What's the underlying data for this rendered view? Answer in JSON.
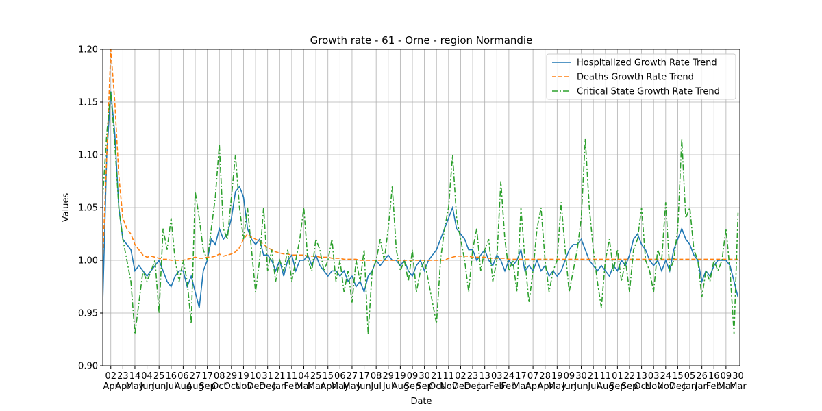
{
  "chart_data": {
    "type": "line",
    "title": "Growth rate - 61 - Orne - region Normandie",
    "xlabel": "Date",
    "ylabel": "Values",
    "grid": true,
    "legend": "upper right",
    "xlim": [
      "2020-03-19",
      "2023-04-02"
    ],
    "ylim": [
      0.9,
      1.2
    ],
    "yticks": [
      {
        "value": 0.9,
        "label": "0.90"
      },
      {
        "value": 0.95,
        "label": "0.95"
      },
      {
        "value": 1.0,
        "label": "1.00"
      },
      {
        "value": 1.05,
        "label": "1.05"
      },
      {
        "value": 1.1,
        "label": "1.10"
      },
      {
        "value": 1.15,
        "label": "1.15"
      },
      {
        "value": 1.2,
        "label": "1.20"
      }
    ],
    "xticks": [
      {
        "value": "2020-04-02",
        "label": "02\nApr"
      },
      {
        "value": "2020-04-23",
        "label": "23\nApr"
      },
      {
        "value": "2020-05-14",
        "label": "14\nMay"
      },
      {
        "value": "2020-06-04",
        "label": "04\nJun"
      },
      {
        "value": "2020-06-25",
        "label": "25\nJun"
      },
      {
        "value": "2020-07-16",
        "label": "16\nJul"
      },
      {
        "value": "2020-08-06",
        "label": "06\nAug"
      },
      {
        "value": "2020-08-27",
        "label": "27\nAug"
      },
      {
        "value": "2020-09-17",
        "label": "17\nSep"
      },
      {
        "value": "2020-10-08",
        "label": "08\nOct"
      },
      {
        "value": "2020-10-29",
        "label": "29\nOct"
      },
      {
        "value": "2020-11-19",
        "label": "19\nNov"
      },
      {
        "value": "2020-12-10",
        "label": "10\nDec"
      },
      {
        "value": "2020-12-31",
        "label": "31\nDec"
      },
      {
        "value": "2021-01-21",
        "label": "21\nJan"
      },
      {
        "value": "2021-02-11",
        "label": "11\nFeb"
      },
      {
        "value": "2021-03-04",
        "label": "04\nMar"
      },
      {
        "value": "2021-03-25",
        "label": "25\nMar"
      },
      {
        "value": "2021-04-15",
        "label": "15\nApr"
      },
      {
        "value": "2021-05-06",
        "label": "06\nMay"
      },
      {
        "value": "2021-05-27",
        "label": "27\nMay"
      },
      {
        "value": "2021-06-17",
        "label": "17\nJun"
      },
      {
        "value": "2021-07-08",
        "label": "08\nJul"
      },
      {
        "value": "2021-07-29",
        "label": "29\nJul"
      },
      {
        "value": "2021-08-19",
        "label": "19\nAug"
      },
      {
        "value": "2021-09-09",
        "label": "09\nSep"
      },
      {
        "value": "2021-09-30",
        "label": "30\nSep"
      },
      {
        "value": "2021-10-21",
        "label": "21\nOct"
      },
      {
        "value": "2021-11-11",
        "label": "11\nNov"
      },
      {
        "value": "2021-12-02",
        "label": "02\nDec"
      },
      {
        "value": "2021-12-23",
        "label": "23\nDec"
      },
      {
        "value": "2022-01-13",
        "label": "13\nJan"
      },
      {
        "value": "2022-02-03",
        "label": "03\nFeb"
      },
      {
        "value": "2022-02-24",
        "label": "24\nFeb"
      },
      {
        "value": "2022-03-17",
        "label": "17\nMar"
      },
      {
        "value": "2022-04-07",
        "label": "07\nApr"
      },
      {
        "value": "2022-04-28",
        "label": "28\nApr"
      },
      {
        "value": "2022-05-19",
        "label": "19\nMay"
      },
      {
        "value": "2022-06-09",
        "label": "09\nJun"
      },
      {
        "value": "2022-06-30",
        "label": "30\nJun"
      },
      {
        "value": "2022-07-21",
        "label": "21\nJul"
      },
      {
        "value": "2022-08-11",
        "label": "11\nAug"
      },
      {
        "value": "2022-09-01",
        "label": "01\nSep"
      },
      {
        "value": "2022-09-22",
        "label": "22\nSep"
      },
      {
        "value": "2022-10-13",
        "label": "13\nOct"
      },
      {
        "value": "2022-11-03",
        "label": "03\nNov"
      },
      {
        "value": "2022-11-24",
        "label": "24\nNov"
      },
      {
        "value": "2022-12-15",
        "label": "15\nDec"
      },
      {
        "value": "2023-01-05",
        "label": "05\nJan"
      },
      {
        "value": "2023-01-26",
        "label": "26\nJan"
      },
      {
        "value": "2023-02-16",
        "label": "16\nFeb"
      },
      {
        "value": "2023-03-09",
        "label": "09\nMar"
      },
      {
        "value": "2023-03-30",
        "label": "30\nMar"
      }
    ],
    "x": [
      "2020-03-19",
      "2020-03-26",
      "2020-04-02",
      "2020-04-09",
      "2020-04-16",
      "2020-04-23",
      "2020-04-30",
      "2020-05-07",
      "2020-05-14",
      "2020-05-21",
      "2020-05-28",
      "2020-06-04",
      "2020-06-11",
      "2020-06-18",
      "2020-06-25",
      "2020-07-02",
      "2020-07-09",
      "2020-07-16",
      "2020-07-23",
      "2020-07-30",
      "2020-08-06",
      "2020-08-13",
      "2020-08-20",
      "2020-08-27",
      "2020-09-03",
      "2020-09-10",
      "2020-09-17",
      "2020-09-24",
      "2020-10-01",
      "2020-10-08",
      "2020-10-15",
      "2020-10-22",
      "2020-10-29",
      "2020-11-05",
      "2020-11-12",
      "2020-11-19",
      "2020-11-26",
      "2020-12-03",
      "2020-12-10",
      "2020-12-17",
      "2020-12-24",
      "2020-12-31",
      "2021-01-07",
      "2021-01-14",
      "2021-01-21",
      "2021-01-28",
      "2021-02-04",
      "2021-02-11",
      "2021-02-18",
      "2021-02-25",
      "2021-03-04",
      "2021-03-11",
      "2021-03-18",
      "2021-03-25",
      "2021-04-01",
      "2021-04-08",
      "2021-04-15",
      "2021-04-22",
      "2021-04-29",
      "2021-05-06",
      "2021-05-13",
      "2021-05-20",
      "2021-05-27",
      "2021-06-03",
      "2021-06-10",
      "2021-06-17",
      "2021-06-24",
      "2021-07-01",
      "2021-07-08",
      "2021-07-15",
      "2021-07-22",
      "2021-07-29",
      "2021-08-05",
      "2021-08-12",
      "2021-08-19",
      "2021-08-26",
      "2021-09-02",
      "2021-09-09",
      "2021-09-16",
      "2021-09-23",
      "2021-09-30",
      "2021-10-07",
      "2021-10-14",
      "2021-10-21",
      "2021-10-28",
      "2021-11-04",
      "2021-11-11",
      "2021-11-18",
      "2021-11-25",
      "2021-12-02",
      "2021-12-09",
      "2021-12-16",
      "2021-12-23",
      "2021-12-30",
      "2022-01-06",
      "2022-01-13",
      "2022-01-20",
      "2022-01-27",
      "2022-02-03",
      "2022-02-10",
      "2022-02-17",
      "2022-02-24",
      "2022-03-03",
      "2022-03-10",
      "2022-03-17",
      "2022-03-24",
      "2022-03-31",
      "2022-04-07",
      "2022-04-14",
      "2022-04-21",
      "2022-04-28",
      "2022-05-05",
      "2022-05-12",
      "2022-05-19",
      "2022-05-26",
      "2022-06-02",
      "2022-06-09",
      "2022-06-16",
      "2022-06-23",
      "2022-06-30",
      "2022-07-07",
      "2022-07-14",
      "2022-07-21",
      "2022-07-28",
      "2022-08-04",
      "2022-08-11",
      "2022-08-18",
      "2022-08-25",
      "2022-09-01",
      "2022-09-08",
      "2022-09-15",
      "2022-09-22",
      "2022-09-29",
      "2022-10-06",
      "2022-10-13",
      "2022-10-20",
      "2022-10-27",
      "2022-11-03",
      "2022-11-10",
      "2022-11-17",
      "2022-11-24",
      "2022-12-01",
      "2022-12-08",
      "2022-12-15",
      "2022-12-22",
      "2022-12-29",
      "2023-01-05",
      "2023-01-12",
      "2023-01-19",
      "2023-01-26",
      "2023-02-02",
      "2023-02-09",
      "2023-02-16",
      "2023-02-23",
      "2023-03-02",
      "2023-03-09",
      "2023-03-16",
      "2023-03-23",
      "2023-03-30"
    ],
    "series": [
      {
        "name": "Hospitalized Growth Rate Trend",
        "color": "#1f77b4",
        "linestyle": "solid",
        "values": [
          0.96,
          1.1,
          1.16,
          1.12,
          1.05,
          1.02,
          1.015,
          1.01,
          0.99,
          0.995,
          0.99,
          0.985,
          0.99,
          0.995,
          1.0,
          0.99,
          0.98,
          0.975,
          0.985,
          0.99,
          0.99,
          0.975,
          0.985,
          0.97,
          0.955,
          0.99,
          1.0,
          1.02,
          1.015,
          1.03,
          1.02,
          1.025,
          1.04,
          1.065,
          1.07,
          1.06,
          1.03,
          1.02,
          1.015,
          1.02,
          1.005,
          1.005,
          1.0,
          0.99,
          1.0,
          0.985,
          1.0,
          1.005,
          0.99,
          1.0,
          1.0,
          1.005,
          0.995,
          1.005,
          0.995,
          0.99,
          0.985,
          0.99,
          0.99,
          0.985,
          0.99,
          0.98,
          0.985,
          0.975,
          0.98,
          0.97,
          0.985,
          0.99,
          1.0,
          0.995,
          1.0,
          1.005,
          1.0,
          1.0,
          0.995,
          1.0,
          0.99,
          0.985,
          0.995,
          1.0,
          0.99,
          1.0,
          1.005,
          1.01,
          1.02,
          1.03,
          1.04,
          1.05,
          1.03,
          1.025,
          1.02,
          1.01,
          1.01,
          1.0,
          1.005,
          1.01,
          1.0,
          0.995,
          1.005,
          1.0,
          0.99,
          1.0,
          0.995,
          1.0,
          1.01,
          0.99,
          0.995,
          0.99,
          1.0,
          0.99,
          0.995,
          0.985,
          0.99,
          0.985,
          0.99,
          1.0,
          1.01,
          1.015,
          1.015,
          1.02,
          1.01,
          1.0,
          0.995,
          0.99,
          0.995,
          0.99,
          0.985,
          0.995,
          0.99,
          1.0,
          0.995,
          1.005,
          1.02,
          1.025,
          1.015,
          1.01,
          1.0,
          0.995,
          1.0,
          0.99,
          1.0,
          0.99,
          1.01,
          1.02,
          1.03,
          1.02,
          1.015,
          1.005,
          1.0,
          0.98,
          0.99,
          0.985,
          0.995,
          1.0,
          1.0,
          1.0,
          0.995,
          0.98,
          0.965
        ]
      },
      {
        "name": "Deaths Growth Rate Trend",
        "color": "#ff7f0e",
        "linestyle": "dashed",
        "values": [
          1.0,
          1.1,
          1.2,
          1.15,
          1.08,
          1.04,
          1.03,
          1.025,
          1.015,
          1.01,
          1.005,
          1.003,
          1.004,
          1.003,
          1.002,
          1.001,
          1.001,
          1.0,
          1.0,
          1.0,
          1.0,
          1.001,
          1.002,
          1.003,
          1.002,
          1.002,
          1.003,
          1.003,
          1.004,
          1.006,
          1.004,
          1.005,
          1.006,
          1.008,
          1.012,
          1.02,
          1.025,
          1.022,
          1.02,
          1.018,
          1.015,
          1.012,
          1.01,
          1.008,
          1.007,
          1.006,
          1.006,
          1.005,
          1.005,
          1.005,
          1.005,
          1.004,
          1.004,
          1.004,
          1.003,
          1.003,
          1.003,
          1.002,
          1.002,
          1.002,
          1.001,
          1.001,
          1.001,
          1.001,
          1.0,
          1.0,
          1.0,
          1.0,
          1.0,
          1.0,
          1.0,
          1.0,
          1.0,
          1.0,
          1.0,
          1.0,
          1.0,
          1.0,
          1.0,
          1.0,
          1.0,
          1.0,
          1.0,
          1.0,
          1.0,
          1.0,
          1.002,
          1.003,
          1.004,
          1.004,
          1.004,
          1.004,
          1.003,
          1.003,
          1.003,
          1.003,
          1.002,
          1.002,
          1.002,
          1.002,
          1.002,
          1.001,
          1.001,
          1.001,
          1.001,
          1.001,
          1.001,
          1.001,
          1.001,
          1.001,
          1.001,
          1.001,
          1.001,
          1.001,
          1.001,
          1.001,
          1.001,
          1.001,
          1.001,
          1.001,
          1.001,
          1.001,
          1.001,
          1.001,
          1.001,
          1.001,
          1.001,
          1.001,
          1.001,
          1.001,
          1.001,
          1.001,
          1.001,
          1.001,
          1.001,
          1.001,
          1.001,
          1.001,
          1.001,
          1.001,
          1.001,
          1.001,
          1.001,
          1.001,
          1.001,
          1.001,
          1.001,
          1.001,
          1.001,
          1.001,
          1.001,
          1.001,
          1.001,
          1.001,
          1.001,
          1.001,
          1.001,
          1.001,
          1.001
        ]
      },
      {
        "name": "Critical State Growth Rate Trend",
        "color": "#2ca02c",
        "linestyle": "dashdot",
        "values": [
          1.06,
          1.12,
          1.16,
          1.11,
          1.05,
          1.02,
          1.0,
          0.98,
          0.93,
          0.96,
          0.99,
          0.98,
          0.99,
          1.0,
          0.95,
          1.03,
          1.01,
          1.04,
          1.0,
          0.98,
          1.0,
          0.98,
          0.94,
          1.065,
          1.04,
          1.01,
          1.0,
          1.03,
          1.06,
          1.11,
          1.03,
          1.02,
          1.06,
          1.1,
          1.05,
          1.02,
          1.05,
          1.01,
          0.97,
          1.0,
          1.05,
          0.99,
          1.01,
          0.98,
          1.0,
          0.99,
          1.01,
          0.98,
          1.0,
          1.02,
          1.05,
          1.0,
          0.99,
          1.02,
          1.01,
          0.99,
          1.0,
          1.02,
          0.98,
          1.0,
          0.97,
          0.99,
          0.96,
          1.0,
          0.98,
          1.01,
          0.93,
          0.99,
          1.0,
          1.02,
          1.0,
          1.03,
          1.07,
          1.01,
          0.99,
          1.0,
          0.98,
          1.01,
          0.97,
          0.99,
          1.0,
          0.98,
          0.96,
          0.94,
          1.0,
          1.03,
          1.05,
          1.1,
          1.04,
          1.02,
          1.0,
          0.97,
          1.01,
          1.03,
          0.99,
          1.01,
          1.02,
          0.98,
          1.0,
          1.075,
          1.02,
          0.99,
          1.0,
          0.97,
          1.05,
          1.0,
          0.96,
          0.99,
          1.03,
          1.05,
          1.0,
          0.97,
          0.99,
          1.0,
          1.055,
          1.01,
          0.97,
          0.99,
          1.01,
          1.04,
          1.115,
          1.05,
          1.01,
          0.98,
          0.955,
          1.0,
          1.02,
          0.99,
          1.01,
          0.98,
          1.0,
          0.97,
          1.01,
          1.02,
          1.05,
          1.0,
          0.99,
          0.97,
          1.01,
          1.0,
          1.055,
          0.99,
          1.0,
          1.03,
          1.115,
          1.04,
          1.05,
          1.01,
          1.0,
          0.965,
          0.99,
          0.98,
          1.0,
          0.99,
          1.0,
          1.03,
          0.99,
          0.93,
          1.045
        ]
      }
    ]
  }
}
